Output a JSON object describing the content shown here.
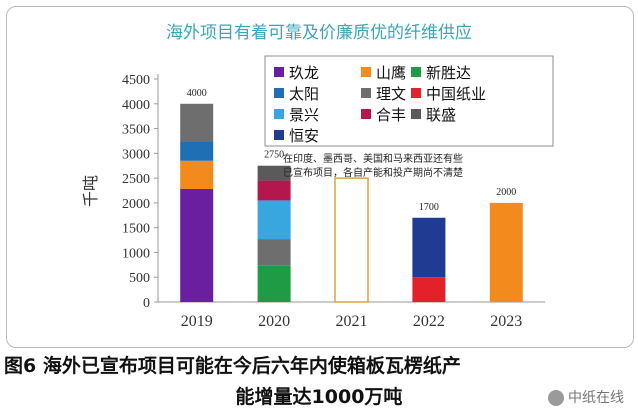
{
  "chart_data": {
    "type": "bar",
    "stacked": true,
    "title": "海外项目有着可靠及价廉质优的纤维供应",
    "ylabel": "千吨",
    "ylim": [
      0,
      4500
    ],
    "yticks": [
      0,
      500,
      1000,
      1500,
      2000,
      2500,
      3000,
      3500,
      4000,
      4500
    ],
    "categories": [
      "2019",
      "2020",
      "2021",
      "2022",
      "2023"
    ],
    "totals": [
      "4000",
      "2750",
      "",
      "1700",
      "2000"
    ],
    "series": [
      {
        "name": "玖龙",
        "color": "#6a1fa0",
        "values": [
          2280,
          0,
          0,
          0,
          0
        ]
      },
      {
        "name": "山鹰",
        "color": "#f28a1e",
        "values": [
          570,
          0,
          0,
          0,
          2000
        ]
      },
      {
        "name": "新胜达",
        "color": "#1f9a45",
        "values": [
          0,
          730,
          0,
          0,
          0
        ]
      },
      {
        "name": "太阳",
        "color": "#1f6fb5",
        "values": [
          390,
          0,
          0,
          0,
          0
        ]
      },
      {
        "name": "理文",
        "color": "#6e6e6e",
        "values": [
          760,
          540,
          0,
          0,
          0
        ]
      },
      {
        "name": "中国纸业",
        "color": "#e3212b",
        "values": [
          0,
          0,
          0,
          500,
          0
        ]
      },
      {
        "name": "景兴",
        "color": "#3aa6e0",
        "values": [
          0,
          780,
          0,
          0,
          0
        ]
      },
      {
        "name": "合丰",
        "color": "#b3174e",
        "values": [
          0,
          400,
          0,
          0,
          0
        ]
      },
      {
        "name": "联盛",
        "color": "#5a5a5a",
        "values": [
          0,
          300,
          0,
          0,
          0
        ]
      },
      {
        "name": "恒安",
        "color": "#1f3b93",
        "values": [
          0,
          0,
          0,
          1200,
          0
        ]
      }
    ],
    "placeholder_2021": {
      "value": 2500,
      "outline_color": "#d9a441"
    },
    "annotation": [
      "在印度、墨西哥、美国和马来西亚还有些",
      "已宣布项目，各自产能和投产期尚不清楚"
    ],
    "grid": false,
    "legend_position": "top-right"
  },
  "caption": {
    "line1": "图6   海外已宣布项目可能在今后六年内使箱板瓦楞纸产",
    "line2": "能增量达1000万吨"
  },
  "watermark": "中纸在线",
  "colors": {
    "title": "#3aa6b8",
    "axis": "#9a9a9a"
  }
}
